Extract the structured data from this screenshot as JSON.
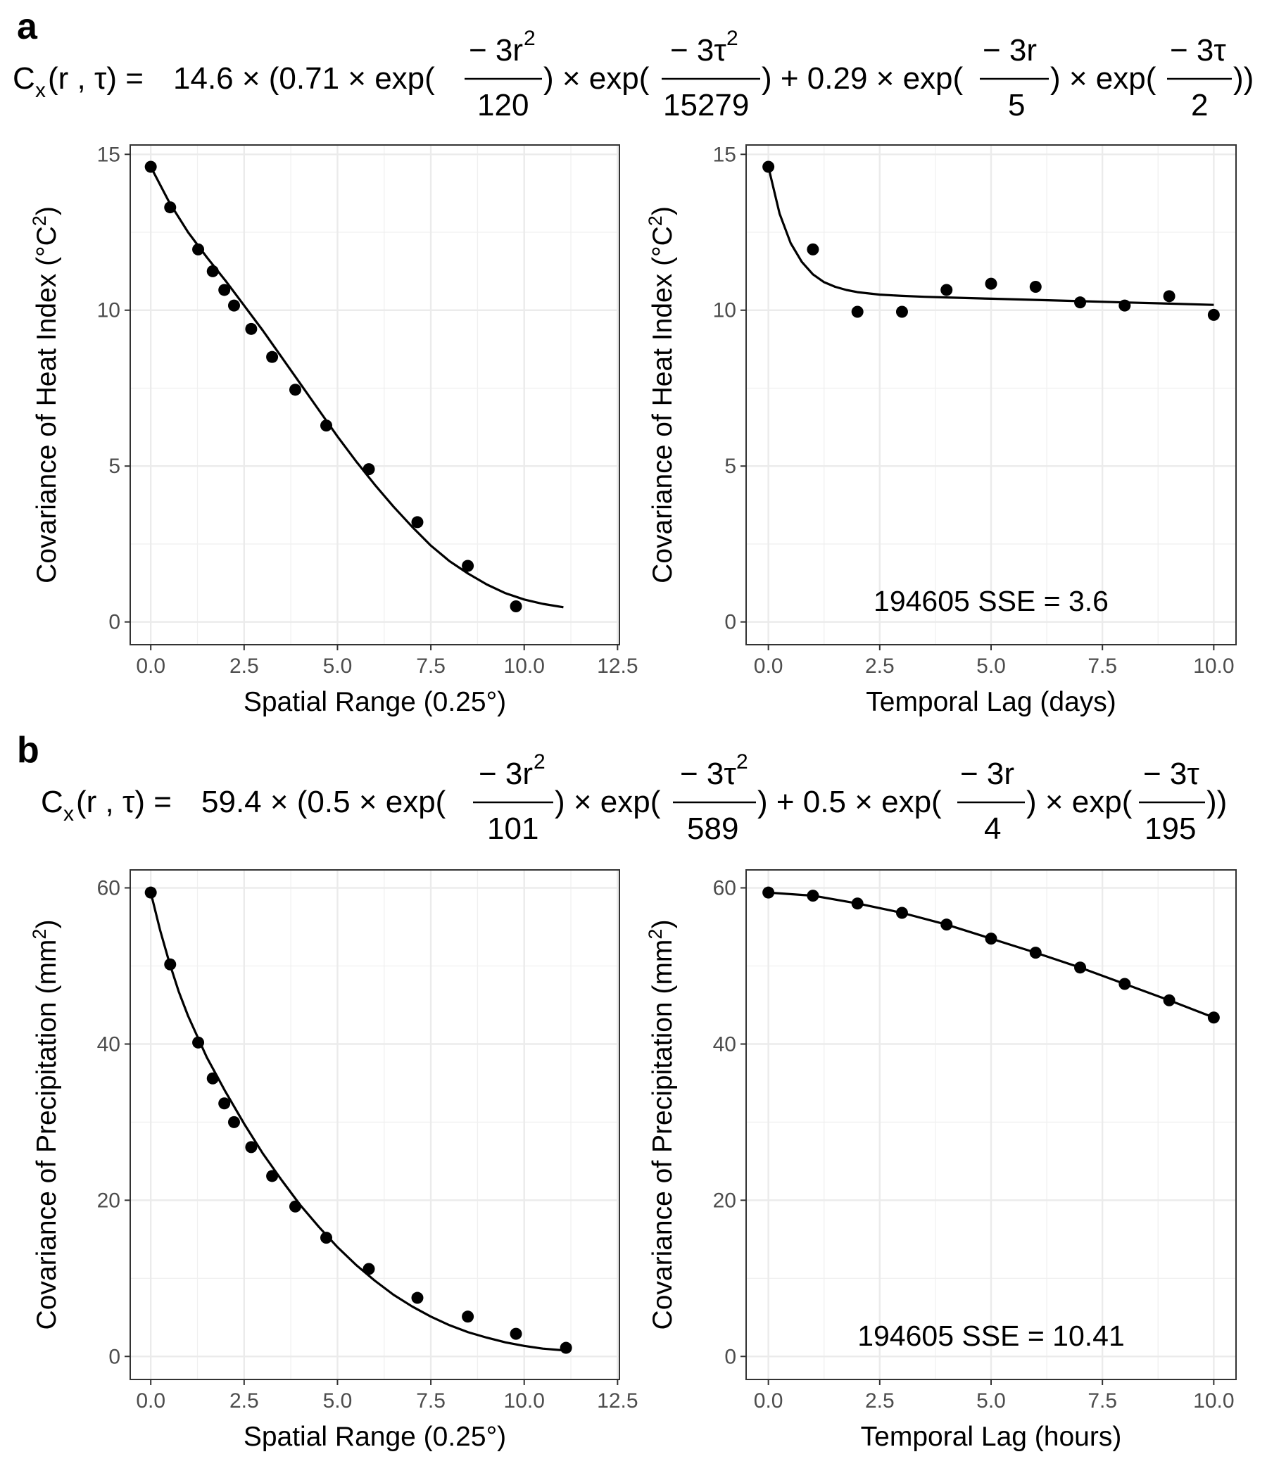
{
  "panels": {
    "a": {
      "label": "a",
      "formula": {
        "lhs": "C",
        "lhs_sub": "x",
        "args": "(r , τ) = ",
        "coef": "14.6 × (0.71 × exp(",
        "f1_num": "− 3r",
        "f1_den": "120",
        "mid1": ") × exp(",
        "f2_num": "− 3τ",
        "f2_den": "15279",
        "mid2": ") + 0.29 × exp(",
        "f3_num": "− 3r",
        "f3_den": "5",
        "mid3": ") × exp(",
        "f4_num": "− 3τ",
        "f4_den": "2",
        "end": "))",
        "sup": "2"
      }
    },
    "b": {
      "label": "b",
      "formula": {
        "lhs": "C",
        "lhs_sub": "x",
        "args": "(r , τ) = ",
        "coef": "59.4 × (0.5 × exp(",
        "f1_num": "− 3r",
        "f1_den": "101",
        "mid1": ") × exp(",
        "f2_num": "− 3τ",
        "f2_den": "589",
        "mid2": ") + 0.5 × exp(",
        "f3_num": "− 3r",
        "f3_den": "4",
        "mid3": ") × exp(",
        "f4_num": "− 3τ",
        "f4_den": "195",
        "end": "))",
        "sup": "2"
      }
    }
  },
  "chart_data": [
    {
      "id": "a-spatial",
      "type": "scatter",
      "title": "",
      "xlabel": "Spatial Range (0.25°)",
      "ylabel": "Covariance of Heat Index  (°C",
      "ylabel_sup": "2",
      "ylabel_end": ")",
      "xlim": [
        -0.55,
        12.55
      ],
      "ylim": [
        -0.73,
        15.3
      ],
      "xticks": [
        "0.0",
        "2.5",
        "5.0",
        "7.5",
        "10.0",
        "12.5"
      ],
      "xtick_values": [
        0,
        2.5,
        5,
        7.5,
        10,
        12.5
      ],
      "yticks": [
        "0",
        "5",
        "10",
        "15"
      ],
      "ytick_values": [
        0,
        5,
        10,
        15
      ],
      "grid": true,
      "points": {
        "x": [
          0,
          0.52,
          1.27,
          1.66,
          1.97,
          2.23,
          2.69,
          3.25,
          3.87,
          4.7,
          5.84,
          7.14,
          8.49,
          9.78
        ],
        "y": [
          14.6,
          13.3,
          11.95,
          11.25,
          10.65,
          10.15,
          9.4,
          8.5,
          7.45,
          6.3,
          4.9,
          3.2,
          1.8,
          0.5
        ]
      },
      "fitted_curve": {
        "x": [
          0,
          0.5,
          1,
          1.5,
          2,
          2.5,
          3,
          3.5,
          4,
          4.5,
          5,
          5.5,
          6,
          6.5,
          7,
          7.5,
          8,
          8.5,
          9,
          9.5,
          10,
          10.5,
          11.05
        ],
        "y": [
          14.6,
          13.45,
          12.5,
          11.7,
          10.95,
          10.15,
          9.35,
          8.5,
          7.65,
          6.8,
          5.95,
          5.15,
          4.4,
          3.7,
          3.05,
          2.45,
          1.95,
          1.55,
          1.2,
          0.92,
          0.72,
          0.58,
          0.47
        ]
      },
      "annotation": ""
    },
    {
      "id": "a-temporal",
      "type": "scatter",
      "title": "",
      "xlabel": "Temporal Lag (days)",
      "ylabel": "Covariance of Heat Index  (°C",
      "ylabel_sup": "2",
      "ylabel_end": ")",
      "xlim": [
        -0.5,
        10.5
      ],
      "ylim": [
        -0.73,
        15.3
      ],
      "xticks": [
        "0.0",
        "2.5",
        "5.0",
        "7.5",
        "10.0"
      ],
      "xtick_values": [
        0,
        2.5,
        5,
        7.5,
        10
      ],
      "yticks": [
        "0",
        "5",
        "10",
        "15"
      ],
      "ytick_values": [
        0,
        5,
        10,
        15
      ],
      "grid": true,
      "points": {
        "x": [
          0,
          1,
          2,
          3,
          4,
          5,
          6,
          7,
          8,
          9,
          10
        ],
        "y": [
          14.6,
          11.95,
          9.95,
          9.95,
          10.65,
          10.85,
          10.75,
          10.25,
          10.15,
          10.45,
          9.85
        ]
      },
      "fitted_curve": {
        "x": [
          0,
          0.25,
          0.5,
          0.75,
          1,
          1.25,
          1.5,
          1.75,
          2,
          2.5,
          3,
          3.5,
          4,
          5,
          6,
          7,
          8,
          9,
          10
        ],
        "y": [
          14.6,
          13.1,
          12.15,
          11.55,
          11.15,
          10.9,
          10.75,
          10.65,
          10.58,
          10.5,
          10.46,
          10.43,
          10.41,
          10.37,
          10.33,
          10.29,
          10.25,
          10.21,
          10.17
        ]
      },
      "annotation": "194605 SSE = 3.6"
    },
    {
      "id": "b-spatial",
      "type": "scatter",
      "title": "",
      "xlabel": "Spatial Range (0.25°)",
      "ylabel": "Covariance of Precipitation  (mm",
      "ylabel_sup": "2",
      "ylabel_end": ")",
      "xlim": [
        -0.55,
        12.55
      ],
      "ylim": [
        -2.95,
        62.3
      ],
      "xticks": [
        "0.0",
        "2.5",
        "5.0",
        "7.5",
        "10.0",
        "12.5"
      ],
      "xtick_values": [
        0,
        2.5,
        5,
        7.5,
        10,
        12.5
      ],
      "yticks": [
        "0",
        "20",
        "40",
        "60"
      ],
      "ytick_values": [
        0,
        20,
        40,
        60
      ],
      "grid": true,
      "points": {
        "x": [
          0,
          0.52,
          1.27,
          1.66,
          1.97,
          2.23,
          2.69,
          3.25,
          3.87,
          4.7,
          5.84,
          7.14,
          8.49,
          9.78,
          11.12
        ],
        "y": [
          59.4,
          50.2,
          40.2,
          35.6,
          32.4,
          30.0,
          26.8,
          23.1,
          19.2,
          15.2,
          11.2,
          7.5,
          5.1,
          2.9,
          1.1
        ]
      },
      "fitted_curve": {
        "x": [
          0,
          0.25,
          0.5,
          0.75,
          1,
          1.5,
          2,
          2.5,
          3,
          3.5,
          4,
          4.5,
          5,
          5.5,
          6,
          6.5,
          7,
          7.5,
          8,
          8.5,
          9,
          9.5,
          10,
          10.5,
          11.12
        ],
        "y": [
          59.4,
          54.6,
          50.4,
          46.7,
          43.6,
          38.3,
          33.9,
          29.8,
          26.0,
          22.6,
          19.4,
          16.6,
          14.0,
          11.7,
          9.7,
          7.9,
          6.4,
          5.1,
          4.0,
          3.1,
          2.4,
          1.8,
          1.35,
          1.0,
          0.75
        ]
      },
      "annotation": ""
    },
    {
      "id": "b-temporal",
      "type": "scatter",
      "title": "",
      "xlabel": "Temporal Lag (hours)",
      "ylabel": "Covariance of Precipitation  (mm",
      "ylabel_sup": "2",
      "ylabel_end": ")",
      "xlim": [
        -0.5,
        10.5
      ],
      "ylim": [
        -2.95,
        62.3
      ],
      "xticks": [
        "0.0",
        "2.5",
        "5.0",
        "7.5",
        "10.0"
      ],
      "xtick_values": [
        0,
        2.5,
        5,
        7.5,
        10
      ],
      "yticks": [
        "0",
        "20",
        "40",
        "60"
      ],
      "ytick_values": [
        0,
        20,
        40,
        60
      ],
      "grid": true,
      "points": {
        "x": [
          0,
          1,
          2,
          3,
          4,
          5,
          6,
          7,
          8,
          9,
          10
        ],
        "y": [
          59.4,
          59.0,
          58.0,
          56.8,
          55.3,
          53.5,
          51.7,
          49.8,
          47.7,
          45.6,
          43.4
        ]
      },
      "fitted_curve": {
        "x": [
          0,
          1,
          2,
          3,
          4,
          5,
          6,
          7,
          8,
          9,
          10
        ],
        "y": [
          59.4,
          59.0,
          58.0,
          56.8,
          55.3,
          53.5,
          51.7,
          49.8,
          47.7,
          45.6,
          43.4
        ]
      },
      "annotation": "194605 SSE = 10.41"
    }
  ]
}
